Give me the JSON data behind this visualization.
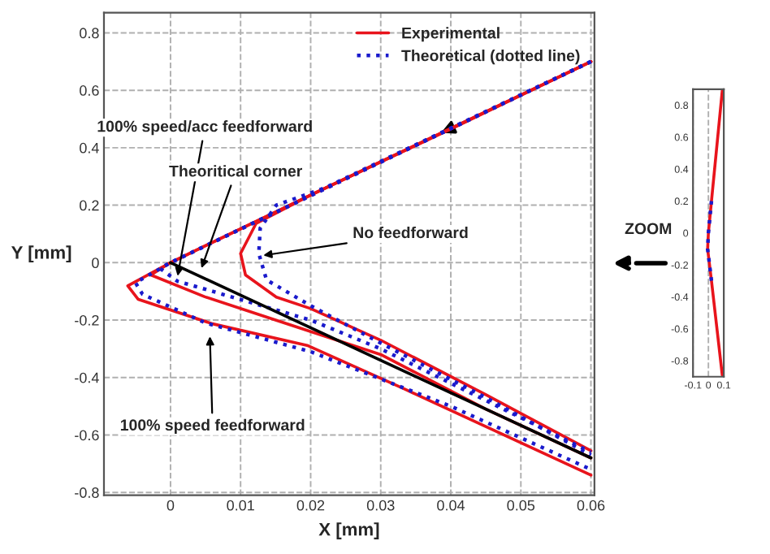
{
  "chart_data": [
    {
      "type": "line",
      "xlabel": "X [mm]",
      "ylabel": "Y [mm]",
      "xlim": [
        -0.0095,
        0.0605
      ],
      "ylim": [
        -0.81,
        0.87
      ],
      "xticks": [
        0,
        0.01,
        0.02,
        0.03,
        0.04,
        0.05,
        0.06
      ],
      "yticks": [
        -0.8,
        -0.6,
        -0.4,
        -0.2,
        0,
        0.2,
        0.4,
        0.6,
        0.8
      ],
      "grid": true,
      "legend": "top right",
      "series": [
        {
          "name": "Experimental",
          "color": "#e8141c",
          "line_style": "solid",
          "x": [
            0.06,
            0.04,
            0.02,
            0.0122,
            0.01,
            0.0107,
            0.0151,
            0.02,
            0.03,
            0.045,
            0.06
          ],
          "values": [
            0.7,
            0.465,
            0.235,
            0.136,
            0.032,
            -0.043,
            -0.12,
            -0.16,
            -0.27,
            -0.46,
            -0.655
          ]
        },
        {
          "color": "#e8141c",
          "line_style": "solid",
          "x": [
            0.06,
            0.02,
            0.0,
            -0.0028,
            0.0049,
            0.015,
            0.03,
            0.045,
            0.06
          ],
          "values": [
            0.7,
            0.235,
            0.0,
            -0.043,
            -0.119,
            -0.2,
            -0.32,
            -0.51,
            -0.68
          ]
        },
        {
          "color": "#e8141c",
          "line_style": "solid",
          "x": [
            0.06,
            0.02,
            0.0,
            -0.0061,
            -0.0046,
            0.006,
            0.0195,
            0.0334,
            0.06
          ],
          "values": [
            0.7,
            0.235,
            0.0,
            -0.081,
            -0.128,
            -0.213,
            -0.288,
            -0.44,
            -0.74
          ]
        },
        {
          "name": "Theoretical (dotted line)",
          "color": "#1a1acc",
          "line_style": "dotted",
          "x": [
            0.06,
            0.022,
            0.0151,
            0.0128,
            0.0126,
            0.0137,
            0.02,
            0.03,
            0.045,
            0.06
          ],
          "values": [
            0.7,
            0.26,
            0.2,
            0.12,
            0.032,
            -0.06,
            -0.15,
            -0.28,
            -0.47,
            -0.67
          ]
        },
        {
          "color": "#1a1acc",
          "line_style": "dotted",
          "x": [
            0.06,
            0.0,
            -0.0015,
            0.001,
            0.006,
            0.02,
            0.03,
            0.045,
            0.06
          ],
          "values": [
            0.7,
            0.0,
            -0.02,
            -0.065,
            -0.1,
            -0.2,
            -0.3,
            -0.48,
            -0.66
          ]
        },
        {
          "color": "#1a1acc",
          "line_style": "dotted",
          "x": [
            0.06,
            0.0,
            -0.005,
            -0.004,
            0.005,
            0.02,
            0.04,
            0.06
          ],
          "values": [
            0.7,
            0.0,
            -0.07,
            -0.11,
            -0.21,
            -0.31,
            -0.5,
            -0.72
          ]
        },
        {
          "color": "#000000",
          "line_style": "solid",
          "x": [
            0.0,
            0.06
          ],
          "values": [
            0.0,
            -0.68
          ]
        }
      ],
      "annotations": [
        {
          "text": "100% speed/acc feedforward",
          "x": 0.0009,
          "y": -0.062
        },
        {
          "text": "Theoritical corner",
          "x": 0.0042,
          "y": -0.034
        },
        {
          "text": "No feedforward",
          "x": 0.0126,
          "y": 0.023
        },
        {
          "text": "100% speed feedforward",
          "x": 0.0056,
          "y": -0.241
        },
        "ZOOM"
      ]
    },
    {
      "type": "line",
      "xlim": [
        -0.1,
        0.1
      ],
      "ylim": [
        -0.9,
        0.9
      ],
      "xticks": [
        -0.1,
        0,
        0.1
      ],
      "yticks": [
        -0.8,
        -0.6,
        -0.4,
        -0.2,
        0,
        0.2,
        0.4,
        0.6,
        0.8
      ],
      "grid": "x",
      "series": [
        {
          "color": "#e8141c",
          "line_style": "solid",
          "x": [
            0.09,
            0.02,
            0.0,
            -0.005,
            0.02,
            0.09
          ],
          "values": [
            0.89,
            0.2,
            0.0,
            -0.1,
            -0.3,
            -0.89
          ]
        },
        {
          "color": "#1a1acc",
          "line_style": "dotted",
          "x": [
            0.02,
            0.0,
            -0.005,
            0.02
          ],
          "values": [
            0.2,
            0.0,
            -0.1,
            -0.3
          ]
        }
      ]
    }
  ]
}
